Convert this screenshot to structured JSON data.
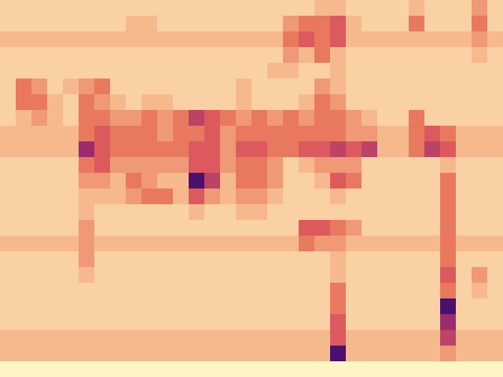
{
  "chart_data": {
    "type": "heatmap",
    "tick_labels": false,
    "cells": [
      [
        2,
        2,
        2,
        2,
        2,
        2,
        2,
        2,
        2,
        2,
        2,
        2,
        2,
        2,
        2,
        2,
        2,
        2,
        2,
        2,
        3,
        3,
        2,
        2,
        2,
        2,
        3,
        2,
        2,
        2,
        4,
        2
      ],
      [
        2,
        2,
        2,
        2,
        2,
        2,
        2,
        2,
        3,
        3,
        2,
        2,
        2,
        2,
        2,
        2,
        2,
        2,
        4,
        5,
        5,
        6,
        3,
        2,
        2,
        2,
        5,
        2,
        2,
        2,
        5,
        2
      ],
      [
        3,
        3,
        3,
        3,
        3,
        3,
        3,
        3,
        3,
        3,
        3,
        3,
        3,
        3,
        3,
        3,
        3,
        3,
        5,
        6,
        5,
        6,
        3,
        3,
        3,
        3,
        3,
        3,
        3,
        3,
        4,
        3
      ],
      [
        2,
        2,
        2,
        2,
        2,
        2,
        2,
        2,
        2,
        2,
        2,
        2,
        2,
        2,
        2,
        2,
        2,
        2,
        4,
        3,
        5,
        3,
        2,
        2,
        2,
        2,
        2,
        2,
        2,
        2,
        3,
        2
      ],
      [
        2,
        2,
        2,
        2,
        2,
        2,
        2,
        2,
        2,
        2,
        2,
        2,
        2,
        2,
        2,
        2,
        2,
        3,
        3,
        2,
        2,
        3,
        2,
        2,
        2,
        2,
        2,
        2,
        2,
        2,
        2,
        2
      ],
      [
        2,
        5,
        4,
        2,
        3,
        4,
        5,
        2,
        2,
        2,
        2,
        2,
        2,
        2,
        2,
        3,
        2,
        2,
        2,
        2,
        4,
        3,
        2,
        2,
        2,
        2,
        2,
        2,
        2,
        2,
        2,
        2
      ],
      [
        2,
        5,
        5,
        3,
        2,
        5,
        4,
        3,
        2,
        3,
        3,
        2,
        2,
        2,
        2,
        3,
        2,
        2,
        2,
        3,
        5,
        4,
        2,
        2,
        2,
        2,
        2,
        2,
        2,
        2,
        2,
        2
      ],
      [
        2,
        3,
        4,
        3,
        2,
        5,
        5,
        4,
        4,
        5,
        4,
        5,
        7,
        6,
        5,
        4,
        5,
        4,
        5,
        4,
        5,
        5,
        4,
        3,
        2,
        2,
        5,
        2,
        2,
        2,
        2,
        2
      ],
      [
        3,
        3,
        3,
        3,
        3,
        5,
        6,
        5,
        5,
        5,
        4,
        5,
        5,
        6,
        4,
        5,
        5,
        5,
        5,
        5,
        5,
        5,
        4,
        4,
        3,
        3,
        5,
        6,
        5,
        3,
        3,
        3
      ],
      [
        3,
        3,
        3,
        3,
        3,
        8,
        6,
        5,
        5,
        5,
        5,
        5,
        6,
        6,
        4,
        6,
        6,
        5,
        5,
        6,
        6,
        7,
        6,
        7,
        3,
        3,
        5,
        7,
        6,
        3,
        3,
        3
      ],
      [
        2,
        2,
        2,
        2,
        2,
        5,
        6,
        4,
        4,
        4,
        4,
        4,
        6,
        6,
        4,
        5,
        5,
        4,
        2,
        3,
        4,
        4,
        4,
        2,
        2,
        2,
        2,
        2,
        3,
        2,
        2,
        2
      ],
      [
        2,
        2,
        2,
        2,
        2,
        4,
        4,
        3,
        5,
        4,
        3,
        3,
        9,
        7,
        3,
        5,
        5,
        4,
        2,
        2,
        3,
        6,
        5,
        2,
        2,
        2,
        2,
        2,
        5,
        2,
        2,
        2
      ],
      [
        2,
        2,
        2,
        2,
        2,
        3,
        3,
        3,
        4,
        5,
        5,
        3,
        6,
        4,
        3,
        4,
        4,
        3,
        2,
        2,
        2,
        3,
        2,
        2,
        2,
        2,
        2,
        2,
        5,
        2,
        2,
        2
      ],
      [
        2,
        2,
        2,
        2,
        2,
        3,
        2,
        2,
        2,
        2,
        2,
        2,
        3,
        2,
        2,
        3,
        3,
        2,
        2,
        2,
        2,
        2,
        2,
        2,
        2,
        2,
        2,
        2,
        5,
        2,
        2,
        2
      ],
      [
        2,
        2,
        2,
        2,
        2,
        4,
        2,
        2,
        2,
        2,
        2,
        2,
        2,
        2,
        2,
        2,
        2,
        2,
        2,
        6,
        6,
        5,
        4,
        2,
        2,
        2,
        2,
        2,
        5,
        2,
        2,
        2
      ],
      [
        3,
        3,
        3,
        3,
        3,
        4,
        3,
        3,
        3,
        3,
        3,
        3,
        3,
        3,
        3,
        3,
        3,
        3,
        3,
        5,
        4,
        4,
        3,
        3,
        3,
        3,
        3,
        3,
        5,
        3,
        3,
        3
      ],
      [
        2,
        2,
        2,
        2,
        2,
        4,
        2,
        2,
        2,
        2,
        2,
        2,
        2,
        2,
        2,
        2,
        2,
        2,
        2,
        2,
        2,
        3,
        2,
        2,
        2,
        2,
        2,
        2,
        5,
        2,
        2,
        2
      ],
      [
        2,
        2,
        2,
        2,
        2,
        3,
        2,
        2,
        2,
        2,
        2,
        2,
        2,
        2,
        2,
        2,
        2,
        2,
        2,
        2,
        2,
        3,
        2,
        2,
        2,
        2,
        2,
        2,
        6,
        2,
        4,
        2
      ],
      [
        2,
        2,
        2,
        2,
        2,
        2,
        2,
        2,
        2,
        2,
        2,
        2,
        2,
        2,
        2,
        2,
        2,
        2,
        2,
        2,
        2,
        5,
        2,
        2,
        2,
        2,
        2,
        2,
        5,
        2,
        3,
        2
      ],
      [
        2,
        2,
        2,
        2,
        2,
        2,
        2,
        2,
        2,
        2,
        2,
        2,
        2,
        2,
        2,
        2,
        2,
        2,
        2,
        2,
        2,
        5,
        2,
        2,
        2,
        2,
        2,
        2,
        9,
        2,
        2,
        2
      ],
      [
        2,
        2,
        2,
        2,
        2,
        2,
        2,
        2,
        2,
        2,
        2,
        2,
        2,
        2,
        2,
        2,
        2,
        2,
        2,
        2,
        2,
        6,
        2,
        2,
        2,
        2,
        2,
        2,
        8,
        2,
        2,
        2
      ],
      [
        3,
        3,
        3,
        3,
        3,
        3,
        3,
        3,
        3,
        3,
        3,
        3,
        3,
        3,
        3,
        3,
        3,
        3,
        3,
        3,
        3,
        6,
        3,
        3,
        3,
        3,
        3,
        3,
        7,
        3,
        3,
        3
      ],
      [
        3,
        3,
        3,
        3,
        3,
        3,
        3,
        3,
        3,
        3,
        3,
        3,
        3,
        3,
        3,
        3,
        3,
        3,
        3,
        3,
        3,
        9,
        3,
        3,
        3,
        3,
        3,
        3,
        4,
        3,
        3,
        3
      ],
      [
        1,
        1,
        1,
        1,
        1,
        1,
        1,
        1,
        1,
        1,
        1,
        1,
        1,
        1,
        1,
        1,
        1,
        1,
        1,
        1,
        1,
        1,
        1,
        1,
        1,
        1,
        1,
        1,
        1,
        1,
        1,
        1
      ]
    ]
  }
}
